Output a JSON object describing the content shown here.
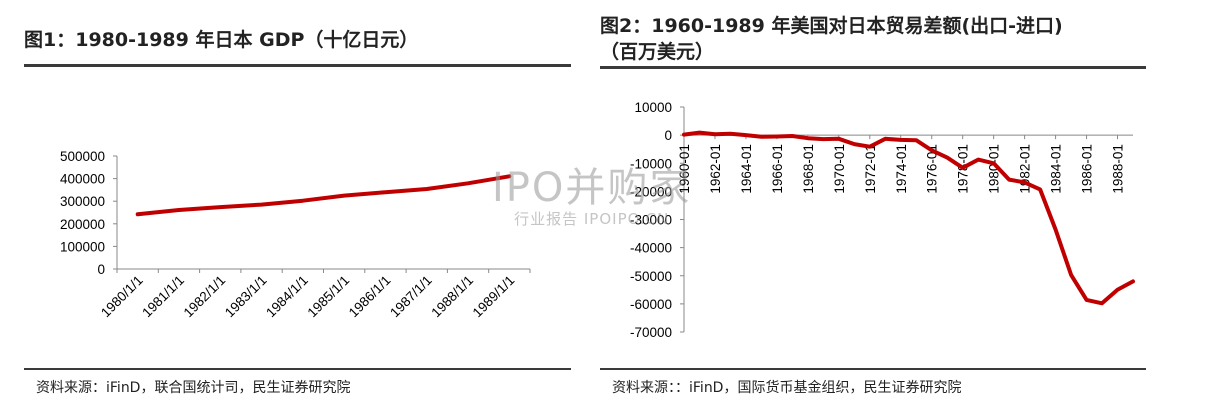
{
  "figure1": {
    "title": "图1：1980-1989 年日本 GDP（十亿日元）",
    "source": "资料来源：iFinD，联合国统计司，民生证券研究院",
    "chart_data": {
      "type": "line",
      "title": "图1：1980-1989 年日本 GDP（十亿日元）",
      "x": [
        "1980/1/1",
        "1981/1/1",
        "1982/1/1",
        "1983/1/1",
        "1984/1/1",
        "1985/1/1",
        "1986/1/1",
        "1987/1/1",
        "1988/1/1",
        "1989/1/1"
      ],
      "series": [
        {
          "values": [
            242000,
            261000,
            274000,
            285000,
            302000,
            325000,
            340000,
            354000,
            379000,
            410000
          ]
        }
      ],
      "yticks": [
        "0",
        "100000",
        "200000",
        "300000",
        "400000",
        "500000"
      ],
      "ylim": [
        0,
        500000
      ],
      "grid": false,
      "line_color": "#c00000"
    }
  },
  "figure2": {
    "title_line1": "图2：1960-1989  年美国对日本贸易差额(出口-进口)",
    "title_line2": "（百万美元）",
    "source": "资料来源：：iFinD，国际货币基金组织，民生证券研究院",
    "chart_data": {
      "type": "line",
      "title": "图2：1960-1989 年美国对日本贸易差额(出口-进口)（百万美元）",
      "x": [
        1960,
        1961,
        1962,
        1963,
        1964,
        1965,
        1966,
        1967,
        1968,
        1969,
        1970,
        1971,
        1972,
        1973,
        1974,
        1975,
        1976,
        1977,
        1978,
        1979,
        1980,
        1981,
        1982,
        1983,
        1984,
        1985,
        1986,
        1987,
        1988,
        1989
      ],
      "xticks": [
        "1960-01",
        "1962-01",
        "1964-01",
        "1966-01",
        "1968-01",
        "1970-01",
        "1972-01",
        "1974-01",
        "1976-01",
        "1978-01",
        "1980-01",
        "1982-01",
        "1984-01",
        "1986-01",
        "1988-01"
      ],
      "series": [
        {
          "values": [
            200,
            900,
            300,
            500,
            0,
            -600,
            -500,
            -300,
            -1100,
            -1400,
            -1300,
            -3200,
            -4100,
            -1300,
            -1700,
            -1800,
            -5400,
            -8000,
            -11600,
            -8700,
            -10000,
            -15800,
            -16800,
            -19300,
            -33600,
            -49700,
            -58600,
            -59800,
            -55000,
            -52000
          ]
        }
      ],
      "yticks": [
        "-70000",
        "-60000",
        "-50000",
        "-40000",
        "-30000",
        "-20000",
        "-10000",
        "0",
        "10000"
      ],
      "ylim": [
        -70000,
        10000
      ],
      "grid": false,
      "line_color": "#c00000"
    }
  },
  "watermark": {
    "main": "IPO并购家",
    "sub": "行业报告 IPOIPO.CN"
  }
}
